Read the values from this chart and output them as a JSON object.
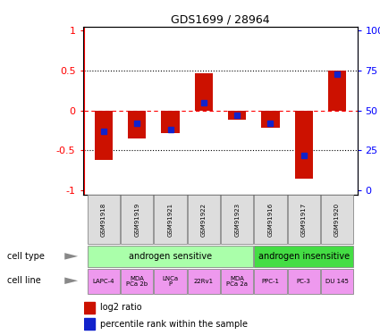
{
  "title": "GDS1699 / 28964",
  "samples": [
    "GSM91918",
    "GSM91919",
    "GSM91921",
    "GSM91922",
    "GSM91923",
    "GSM91916",
    "GSM91917",
    "GSM91920"
  ],
  "log2_ratio": [
    -0.62,
    -0.35,
    -0.28,
    0.47,
    -0.12,
    -0.22,
    -0.85,
    0.5
  ],
  "percentile_rank": [
    37,
    42,
    38,
    55,
    47,
    42,
    22,
    73
  ],
  "cell_type_groups": [
    {
      "label": "androgen sensitive",
      "start": 0,
      "end": 5,
      "color": "#aaffaa"
    },
    {
      "label": "androgen insensitive",
      "start": 5,
      "end": 8,
      "color": "#44dd44"
    }
  ],
  "cell_lines": [
    "LAPC-4",
    "MDA\nPCa 2b",
    "LNCa\nP",
    "22Rv1",
    "MDA\nPCa 2a",
    "PPC-1",
    "PC-3",
    "DU 145"
  ],
  "cell_line_color": "#ee99ee",
  "bar_color_red": "#cc1100",
  "bar_color_blue": "#1122cc",
  "yticks_left": [
    -1,
    -0.5,
    0,
    0.5,
    1
  ],
  "ytick_labels_left": [
    "-1",
    "-0.5",
    "0",
    "0.5",
    "1"
  ],
  "ylim": [
    -1.05,
    1.05
  ],
  "bar_width": 0.55
}
